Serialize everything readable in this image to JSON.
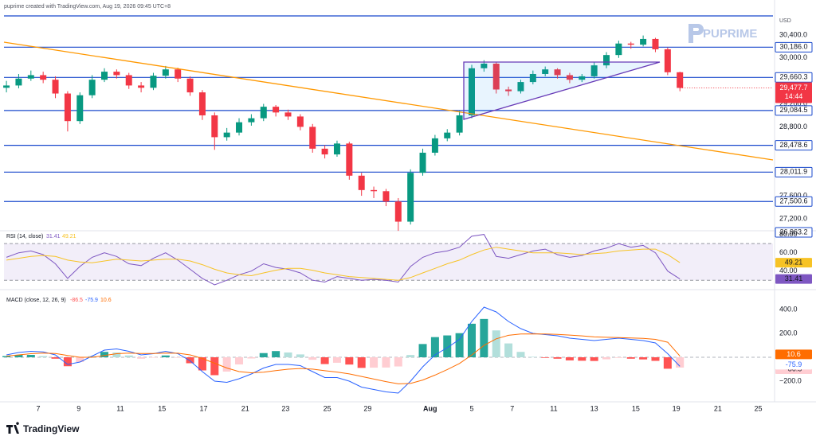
{
  "header": "puprime created with TradingView.com, Aug 19, 2026 09:45 UTC+8",
  "currency": "USD",
  "brand": "PUPRIME",
  "footer": "TradingView",
  "chart_data": [
    {
      "type": "candlestick",
      "xlim": [
        -0.2,
        62.6
      ],
      "xticks": [
        {
          "value": 2.6,
          "label": "7"
        },
        {
          "value": 5.9,
          "label": "9"
        },
        {
          "value": 9.3,
          "label": "11"
        },
        {
          "value": 12.7,
          "label": "15"
        },
        {
          "value": 16.1,
          "label": "17"
        },
        {
          "value": 19.5,
          "label": "21"
        },
        {
          "value": 22.8,
          "label": "23"
        },
        {
          "value": 26.2,
          "label": "25"
        },
        {
          "value": 29.5,
          "label": "29"
        },
        {
          "value": 34.6,
          "label": "Aug"
        },
        {
          "value": 38.0,
          "label": "5"
        },
        {
          "value": 41.3,
          "label": "7"
        },
        {
          "value": 44.7,
          "label": "11"
        },
        {
          "value": 48.0,
          "label": "13"
        },
        {
          "value": 51.4,
          "label": "15"
        },
        {
          "value": 54.7,
          "label": "19"
        },
        {
          "value": 58.1,
          "label": "21"
        },
        {
          "value": 61.4,
          "label": "25"
        }
      ],
      "ylim": [
        26950,
        30800
      ],
      "yticks": [
        {
          "value": 30400,
          "label": "30,400.0"
        },
        {
          "value": 30000,
          "label": "30,000.0"
        },
        {
          "value": 29200,
          "label": "29,200.0"
        },
        {
          "value": 28800,
          "label": "28,800.0"
        },
        {
          "value": 27600,
          "label": "27,600.0"
        },
        {
          "value": 27200,
          "label": "27,200.0"
        }
      ],
      "grid": false,
      "up_color": "#089981",
      "down_color": "#f23645",
      "level_color": "#1848cc",
      "levels": [
        {
          "value": 30186.0,
          "label": "30,186.0"
        },
        {
          "value": 29660.3,
          "label": "29,660.3"
        },
        {
          "value": 29084.5,
          "label": "29,084.5"
        },
        {
          "value": 28478.6,
          "label": "28,478.6"
        },
        {
          "value": 28011.9,
          "label": "28,011.9"
        },
        {
          "value": 27500.6,
          "label": "27,500.6"
        },
        {
          "value": 26963.2,
          "label": "26,963.2"
        }
      ],
      "last_label": "29,477.7",
      "countdown": "14:44",
      "open": [
        29480,
        29520,
        29640,
        29700,
        29620,
        29380,
        28900,
        29350,
        29620,
        29760,
        29700,
        29520,
        29480,
        29690,
        29800,
        29640,
        29400,
        29000,
        28620,
        28700,
        28880,
        28950,
        29150,
        29050,
        28980,
        28800,
        28420,
        28320,
        28510,
        27950,
        27700,
        27680,
        27500,
        27150,
        28000,
        28350,
        28600,
        28700,
        29000,
        29820,
        29900,
        29450,
        29420,
        29580,
        29720,
        29800,
        29700,
        29620,
        29680,
        29870,
        30050,
        30250,
        30230,
        30330,
        30150,
        29750
      ],
      "high": [
        29600,
        29720,
        29780,
        29760,
        29680,
        29420,
        29400,
        29700,
        29820,
        29800,
        29740,
        29580,
        29740,
        29860,
        29830,
        29680,
        29440,
        29050,
        28780,
        28950,
        29020,
        29200,
        29180,
        29100,
        29020,
        28850,
        28480,
        28560,
        28540,
        28000,
        27760,
        27720,
        27560,
        28060,
        28420,
        28660,
        28760,
        29080,
        29880,
        29960,
        29920,
        29500,
        29620,
        29780,
        29850,
        29820,
        29740,
        29720,
        29920,
        30100,
        30300,
        30280,
        30390,
        30350,
        30180,
        29760
      ],
      "low": [
        29400,
        29470,
        29600,
        29560,
        29300,
        28720,
        28850,
        29300,
        29580,
        29640,
        29460,
        29400,
        29440,
        29640,
        29580,
        29340,
        28920,
        28400,
        28560,
        28650,
        28820,
        28900,
        28980,
        28920,
        28740,
        28350,
        28250,
        28280,
        27880,
        27600,
        27560,
        27420,
        26990,
        27100,
        27950,
        28300,
        28550,
        28650,
        28950,
        29760,
        29380,
        29340,
        29380,
        29540,
        29680,
        29640,
        29560,
        29580,
        29640,
        29820,
        30000,
        30160,
        30200,
        30100,
        29700,
        29420
      ],
      "close": [
        29520,
        29640,
        29700,
        29620,
        29380,
        28900,
        29350,
        29620,
        29760,
        29700,
        29520,
        29480,
        29690,
        29800,
        29640,
        29400,
        29000,
        28620,
        28700,
        28880,
        28950,
        29150,
        29050,
        28980,
        28800,
        28420,
        28320,
        28510,
        27950,
        27700,
        27680,
        27500,
        27150,
        28000,
        28350,
        28600,
        28700,
        29000,
        29820,
        29900,
        29450,
        29420,
        29580,
        29720,
        29800,
        29700,
        29620,
        29680,
        29870,
        30050,
        30250,
        30230,
        30330,
        30150,
        29750,
        29477.7
      ]
    },
    {
      "type": "line",
      "title": "RSI (14, close)",
      "ylim": [
        25,
        84
      ],
      "yticks": [
        {
          "value": 80,
          "label": "80.00"
        },
        {
          "value": 60,
          "label": "60.00"
        },
        {
          "value": 40,
          "label": "40.00"
        }
      ],
      "band": [
        30,
        70
      ],
      "band_color": "#7e57c2",
      "series": [
        {
          "color": "#7e57c2",
          "values": [
            55,
            60,
            62,
            58,
            48,
            32,
            45,
            55,
            60,
            56,
            48,
            46,
            54,
            60,
            52,
            42,
            32,
            25,
            30,
            36,
            40,
            48,
            44,
            42,
            38,
            30,
            28,
            34,
            32,
            30,
            31,
            30,
            28,
            45,
            55,
            60,
            62,
            66,
            78,
            80,
            56,
            54,
            58,
            62,
            64,
            58,
            55,
            57,
            62,
            65,
            70,
            66,
            68,
            60,
            40,
            31.41
          ]
        },
        {
          "color": "#f7c325",
          "values": [
            52,
            54,
            56,
            57,
            56,
            52,
            50,
            49,
            51,
            53,
            52,
            51,
            52,
            53,
            53,
            51,
            47,
            42,
            38,
            36,
            35,
            38,
            41,
            43,
            43,
            41,
            38,
            36,
            34,
            33,
            32,
            31,
            30,
            33,
            38,
            43,
            48,
            52,
            58,
            63,
            66,
            64,
            62,
            60,
            60,
            60,
            59,
            58,
            59,
            60,
            62,
            63,
            64,
            64,
            58,
            49.21
          ]
        }
      ]
    },
    {
      "type": "macd",
      "title": "MACD (close, 12, 26, 9)",
      "ylim": [
        -340,
        460
      ],
      "yticks": [
        {
          "value": 400,
          "label": "400.0"
        },
        {
          "value": 200,
          "label": "200.0"
        },
        {
          "value": -200,
          "label": "−200.0"
        }
      ],
      "series": [
        {
          "kind": "histogram",
          "color": "#ff5252",
          "values": [
            10,
            20,
            20,
            10,
            -12,
            -75,
            -40,
            10,
            45,
            40,
            15,
            -12,
            -2,
            15,
            -4,
            -50,
            -110,
            -150,
            -120,
            -60,
            -10,
            35,
            52,
            40,
            24,
            -21,
            -57,
            -46,
            -61,
            -89,
            -87,
            -86,
            -77,
            19,
            111,
            169,
            183,
            202,
            281,
            321,
            225,
            116,
            45,
            4,
            -5,
            -12,
            -26,
            -29,
            -31,
            -17,
            -5,
            -12,
            -18,
            -30,
            -96,
            -86.5
          ]
        },
        {
          "kind": "line",
          "color": "#2962ff",
          "values": [
            20,
            40,
            50,
            45,
            20,
            -60,
            -40,
            10,
            60,
            70,
            50,
            20,
            30,
            50,
            30,
            -30,
            -120,
            -200,
            -210,
            -180,
            -140,
            -90,
            -60,
            -60,
            -70,
            -120,
            -170,
            -170,
            -200,
            -250,
            -270,
            -290,
            -300,
            -200,
            -80,
            20,
            80,
            150,
            300,
            420,
            380,
            300,
            240,
            200,
            190,
            180,
            160,
            150,
            140,
            150,
            160,
            150,
            140,
            120,
            30,
            -75.9
          ]
        },
        {
          "kind": "line",
          "color": "#ff6d00",
          "values": [
            10,
            20,
            30,
            35,
            32,
            15,
            0,
            0,
            15,
            30,
            35,
            32,
            32,
            35,
            34,
            20,
            -10,
            -50,
            -90,
            -120,
            -130,
            -125,
            -112,
            -100,
            -94,
            -99,
            -113,
            -124,
            -139,
            -161,
            -183,
            -204,
            -223,
            -219,
            -191,
            -149,
            -103,
            -52,
            19,
            99,
            155,
            184,
            195,
            196,
            195,
            192,
            186,
            179,
            171,
            167,
            165,
            162,
            158,
            150,
            126,
            10.6
          ]
        }
      ]
    }
  ]
}
